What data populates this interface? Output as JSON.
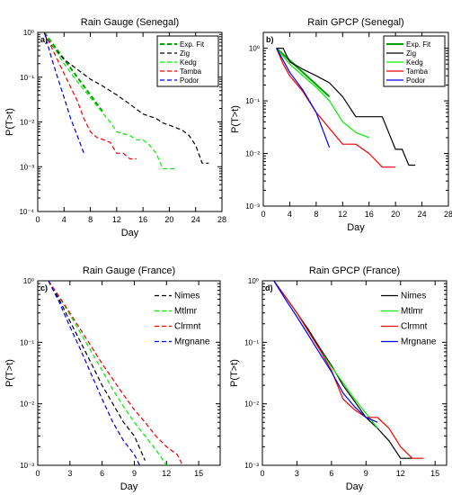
{
  "chart_data": [
    {
      "type": "line",
      "panel": "a)",
      "title": "Rain Gauge (Senegal)",
      "xlabel": "Day",
      "ylabel": "P(T>t)",
      "yscale": "log",
      "xlim": [
        0,
        28
      ],
      "ylim": [
        0.0001,
        1
      ],
      "xticks": [
        0,
        4,
        8,
        12,
        16,
        20,
        24,
        28
      ],
      "yticks": [
        {
          "value": 1,
          "label": "10⁰"
        },
        {
          "value": 0.1,
          "label": "10⁻¹"
        },
        {
          "value": 0.01,
          "label": "10⁻²"
        },
        {
          "value": 0.001,
          "label": "10⁻³"
        },
        {
          "value": 0.0001,
          "label": "10⁻⁴"
        }
      ],
      "legend_position": "top-right",
      "legend_boxed": true,
      "series": [
        {
          "name": "Exp. Fit",
          "color": "#00a000",
          "dash": "5,3",
          "width": 2.0,
          "x": [
            1,
            10
          ],
          "y": [
            1,
            0.016
          ]
        },
        {
          "name": "Zig",
          "color": "#000000",
          "dash": "5,3",
          "width": 1.2,
          "x": [
            1,
            2,
            4,
            6,
            8,
            10,
            12,
            14,
            16,
            18,
            19,
            20,
            22,
            23,
            24,
            25,
            26
          ],
          "y": [
            1,
            0.55,
            0.25,
            0.15,
            0.09,
            0.062,
            0.04,
            0.025,
            0.015,
            0.012,
            0.0095,
            0.0085,
            0.0065,
            0.005,
            0.003,
            0.0012,
            0.0012
          ]
        },
        {
          "name": "Kedg",
          "color": "#00ee00",
          "dash": "5,3",
          "width": 1.2,
          "x": [
            1,
            2,
            4,
            6,
            8,
            10,
            11,
            12,
            14,
            15,
            16,
            17,
            18,
            19,
            20,
            21
          ],
          "y": [
            1,
            0.6,
            0.2,
            0.08,
            0.035,
            0.015,
            0.01,
            0.006,
            0.005,
            0.004,
            0.004,
            0.003,
            0.002,
            0.0009,
            0.0009,
            0.0009
          ]
        },
        {
          "name": "Tamba",
          "color": "#ee0000",
          "dash": "5,3",
          "width": 1.2,
          "x": [
            1,
            2,
            4,
            6,
            7,
            8,
            9,
            10,
            11,
            12,
            13,
            14,
            15
          ],
          "y": [
            1,
            0.5,
            0.12,
            0.03,
            0.012,
            0.006,
            0.0045,
            0.004,
            0.0035,
            0.002,
            0.002,
            0.0015,
            0.0015
          ]
        },
        {
          "name": "Podor",
          "color": "#0000dd",
          "dash": "5,3",
          "width": 1.2,
          "x": [
            1,
            2,
            3,
            4,
            5,
            6,
            7
          ],
          "y": [
            1,
            0.3,
            0.1,
            0.035,
            0.012,
            0.005,
            0.002
          ]
        }
      ]
    },
    {
      "type": "line",
      "panel": "b)",
      "title": "Rain GPCP (Senegal)",
      "xlabel": "Day",
      "ylabel": "P(T>t)",
      "yscale": "log",
      "xlim": [
        0,
        28
      ],
      "ylim": [
        0.001,
        2
      ],
      "xticks": [
        0,
        4,
        8,
        12,
        16,
        20,
        24,
        28
      ],
      "yticks": [
        {
          "value": 1,
          "label": "10⁰"
        },
        {
          "value": 0.1,
          "label": "10⁻¹"
        },
        {
          "value": 0.01,
          "label": "10⁻²"
        },
        {
          "value": 0.001,
          "label": "10⁻³"
        }
      ],
      "legend_position": "top-right",
      "legend_boxed": true,
      "series": [
        {
          "name": "Exp. Fit",
          "color": "#00a000",
          "dash": "",
          "width": 2.0,
          "x": [
            2,
            10
          ],
          "y": [
            1,
            0.12
          ]
        },
        {
          "name": "Zig",
          "color": "#000000",
          "dash": "",
          "width": 1.2,
          "x": [
            2,
            3,
            4,
            6,
            8,
            10,
            12,
            14,
            16,
            18,
            20,
            21,
            22,
            23
          ],
          "y": [
            1,
            1,
            0.55,
            0.4,
            0.3,
            0.22,
            0.12,
            0.05,
            0.05,
            0.05,
            0.012,
            0.012,
            0.006,
            0.006
          ]
        },
        {
          "name": "Kedg",
          "color": "#00ee00",
          "dash": "",
          "width": 1.2,
          "x": [
            2,
            4,
            6,
            8,
            10,
            12,
            14,
            16
          ],
          "y": [
            1,
            0.5,
            0.3,
            0.18,
            0.1,
            0.04,
            0.025,
            0.02
          ]
        },
        {
          "name": "Tamba",
          "color": "#ee0000",
          "dash": "",
          "width": 1.2,
          "x": [
            2,
            3,
            4,
            6,
            8,
            10,
            12,
            14,
            16,
            18,
            20
          ],
          "y": [
            1,
            0.5,
            0.3,
            0.15,
            0.06,
            0.03,
            0.015,
            0.015,
            0.01,
            0.0055,
            0.0055
          ]
        },
        {
          "name": "Podor",
          "color": "#0000ee",
          "dash": "",
          "width": 1.2,
          "x": [
            2,
            4,
            6,
            8,
            10
          ],
          "y": [
            1,
            0.35,
            0.16,
            0.06,
            0.013
          ]
        }
      ]
    },
    {
      "type": "line",
      "panel": "c)",
      "title": "Rain Gauge (France)",
      "xlabel": "Day",
      "ylabel": "P(T>t)",
      "yscale": "log",
      "xlim": [
        0,
        17
      ],
      "ylim": [
        0.001,
        1
      ],
      "xticks": [
        0,
        3,
        6,
        9,
        12,
        15
      ],
      "yticks": [
        {
          "value": 1,
          "label": "10⁰"
        },
        {
          "value": 0.1,
          "label": "10⁻¹"
        },
        {
          "value": 0.01,
          "label": "10⁻²"
        },
        {
          "value": 0.001,
          "label": "10⁻³"
        }
      ],
      "legend_position": "top-right",
      "legend_boxed": false,
      "series": [
        {
          "name": "Nimes",
          "color": "#000000",
          "dash": "5,3",
          "width": 1.2,
          "x": [
            1,
            2,
            3,
            4,
            5,
            6,
            7,
            8,
            9,
            10
          ],
          "y": [
            1,
            0.5,
            0.22,
            0.1,
            0.045,
            0.02,
            0.01,
            0.005,
            0.003,
            0.0012
          ]
        },
        {
          "name": "Mtlmr",
          "color": "#00ee00",
          "dash": "5,3",
          "width": 1.2,
          "x": [
            1,
            2,
            3,
            4,
            5,
            6,
            7,
            8,
            9,
            10,
            11,
            12
          ],
          "y": [
            1,
            0.55,
            0.28,
            0.14,
            0.07,
            0.035,
            0.017,
            0.009,
            0.005,
            0.003,
            0.0018,
            0.001
          ]
        },
        {
          "name": "Clrmnt",
          "color": "#ee0000",
          "dash": "5,3",
          "width": 1.2,
          "x": [
            1,
            2,
            3,
            4,
            5,
            6,
            7,
            8,
            9,
            10,
            11,
            12,
            13,
            13.5
          ],
          "y": [
            1,
            0.55,
            0.3,
            0.16,
            0.085,
            0.045,
            0.025,
            0.014,
            0.008,
            0.005,
            0.003,
            0.002,
            0.0015,
            0.001
          ]
        },
        {
          "name": "Mrgnane",
          "color": "#0000dd",
          "dash": "5,3",
          "width": 1.2,
          "x": [
            1,
            2,
            3,
            4,
            5,
            6,
            7,
            8,
            9,
            9.5
          ],
          "y": [
            1,
            0.45,
            0.18,
            0.075,
            0.03,
            0.012,
            0.005,
            0.0025,
            0.0015,
            0.001
          ]
        }
      ]
    },
    {
      "type": "line",
      "panel": "d)",
      "title": "Rain GPCP (France)",
      "xlabel": "Day",
      "ylabel": "P(T>t)",
      "yscale": "log",
      "xlim": [
        0,
        16
      ],
      "ylim": [
        0.001,
        1
      ],
      "xticks": [
        0,
        3,
        6,
        9,
        12,
        15
      ],
      "yticks": [
        {
          "value": 1,
          "label": "10⁰"
        },
        {
          "value": 0.1,
          "label": "10⁻¹"
        },
        {
          "value": 0.01,
          "label": "10⁻²"
        },
        {
          "value": 0.001,
          "label": "10⁻³"
        }
      ],
      "legend_position": "top-right",
      "legend_boxed": false,
      "series": [
        {
          "name": "Nimes",
          "color": "#000000",
          "dash": "",
          "width": 1.2,
          "x": [
            1,
            2,
            3,
            4,
            5,
            6,
            7,
            8,
            9,
            10,
            11,
            12,
            13
          ],
          "y": [
            1,
            0.55,
            0.3,
            0.16,
            0.08,
            0.042,
            0.02,
            0.011,
            0.006,
            0.004,
            0.0025,
            0.0013,
            0.0013
          ]
        },
        {
          "name": "Mtlmr",
          "color": "#00ee00",
          "dash": "",
          "width": 1.2,
          "x": [
            1,
            2,
            3,
            4,
            5,
            6,
            7,
            8,
            9,
            10
          ],
          "y": [
            1,
            0.55,
            0.3,
            0.15,
            0.075,
            0.04,
            0.022,
            0.012,
            0.007,
            0.004
          ]
        },
        {
          "name": "Clrmnt",
          "color": "#ee0000",
          "dash": "",
          "width": 1.2,
          "x": [
            1,
            2,
            3,
            4,
            5,
            6,
            7,
            8,
            9,
            10,
            11,
            12,
            13,
            14
          ],
          "y": [
            1,
            0.55,
            0.3,
            0.15,
            0.075,
            0.035,
            0.012,
            0.008,
            0.006,
            0.006,
            0.004,
            0.002,
            0.0013,
            0.0013
          ]
        },
        {
          "name": "Mrgnane",
          "color": "#0000ee",
          "dash": "",
          "width": 1.2,
          "x": [
            1,
            2,
            3,
            4,
            5,
            6,
            7,
            8,
            9,
            10
          ],
          "y": [
            1,
            0.5,
            0.26,
            0.13,
            0.065,
            0.033,
            0.015,
            0.009,
            0.006,
            0.005
          ]
        }
      ]
    }
  ]
}
